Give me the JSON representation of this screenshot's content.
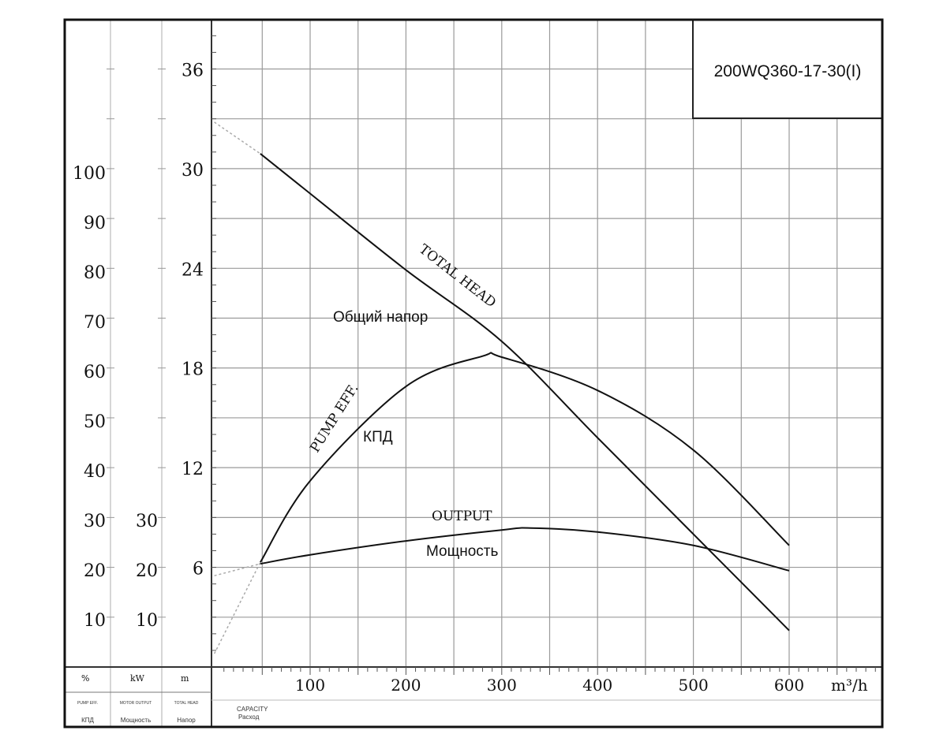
{
  "chart_data": {
    "type": "line",
    "title": "200WQ360-17-30(I)",
    "xlabel": "m³/h",
    "x_caption": [
      "CAPACITY",
      "Расход"
    ],
    "xlim": [
      0,
      696
    ],
    "x_ticks": [
      100,
      200,
      300,
      400,
      500,
      600
    ],
    "axes": {
      "eff": {
        "unit": "%",
        "caption": [
          "PUMP EFF.",
          "КПД"
        ],
        "ticks": [
          10,
          20,
          30,
          40,
          50,
          60,
          70,
          80,
          90,
          100
        ],
        "lim": [
          0,
          130
        ]
      },
      "power": {
        "unit": "kW",
        "caption": [
          "MOTOR OUTPUT",
          "Мощность"
        ],
        "ticks": [
          10,
          20,
          30
        ],
        "lim": [
          0,
          130
        ]
      },
      "head": {
        "unit": "m",
        "caption": [
          "TOTAL HEAD",
          "Напор"
        ],
        "ticks": [
          6,
          12,
          18,
          24,
          30,
          36
        ],
        "lim": [
          0,
          39
        ]
      }
    },
    "grid": true,
    "series": [
      {
        "name": "TOTAL HEAD",
        "label_ru": "Общий напор",
        "axis": "head",
        "x": [
          48,
          100,
          200,
          300,
          400,
          500,
          600
        ],
        "y": [
          30.9,
          28.5,
          23.9,
          19.6,
          13.8,
          8.0,
          2.2
        ],
        "extension": {
          "x": [
            0,
            48
          ],
          "y": [
            32.8,
            30.9
          ]
        }
      },
      {
        "name": "PUMP EFF.",
        "label_ru": "КПД",
        "axis": "eff",
        "x": [
          48,
          100,
          200,
          280,
          300,
          400,
          500,
          600
        ],
        "y": [
          21.4,
          37.8,
          56.8,
          62.9,
          62.7,
          56.0,
          44.0,
          24.8
        ],
        "extension": {
          "x": [
            0,
            48
          ],
          "y": [
            3,
            21.4
          ]
        }
      },
      {
        "name": "OUTPUT",
        "label_ru": "Мощность",
        "axis": "power",
        "x": [
          48,
          100,
          200,
          300,
          330,
          400,
          500,
          600
        ],
        "y": [
          21.1,
          22.9,
          25.7,
          27.9,
          28.3,
          27.5,
          24.8,
          19.7
        ],
        "extension": {
          "x": [
            0,
            48
          ],
          "y": [
            18.7,
            21.1
          ]
        }
      }
    ]
  }
}
